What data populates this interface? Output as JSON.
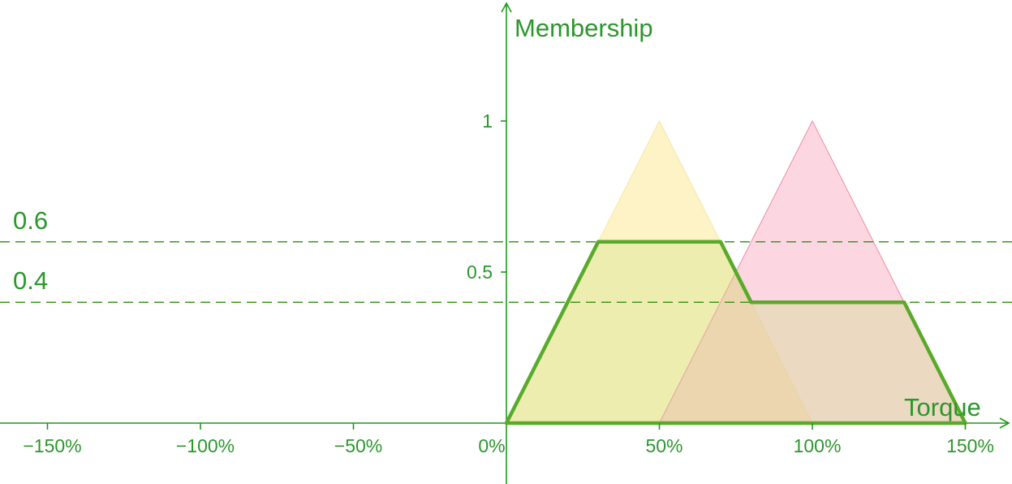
{
  "colors": {
    "axis": "#1a9a1a",
    "text": "#2c962c",
    "dash": "#3a9a1a",
    "outline": "#5aaa2a",
    "yellow_fill": "#fcf0b8",
    "pink_fill": "#f9b4c8",
    "pink_edge": "#f08ca8",
    "yellow_edge": "#f5e7a6",
    "aggregate_fill": "#c8e07a"
  },
  "chart_data": {
    "type": "area",
    "xlabel": "Torque",
    "ylabel": "Membership",
    "xlim": [
      -160,
      165
    ],
    "ylim": [
      -0.2,
      1.4
    ],
    "x_ticks": [
      {
        "value": -150,
        "label": "−150%"
      },
      {
        "value": -100,
        "label": "−100%"
      },
      {
        "value": -50,
        "label": "−50%"
      },
      {
        "value": 0,
        "label": "0%"
      },
      {
        "value": 50,
        "label": "50%"
      },
      {
        "value": 100,
        "label": "100%"
      },
      {
        "value": 150,
        "label": "150%"
      }
    ],
    "y_ticks": [
      {
        "value": 0.5,
        "label": "0.5"
      },
      {
        "value": 1,
        "label": "1"
      }
    ],
    "membership_functions": [
      {
        "shape": "triangle",
        "points": [
          [
            0,
            0
          ],
          [
            50,
            1
          ],
          [
            100,
            0
          ]
        ],
        "color": "yellow"
      },
      {
        "shape": "triangle",
        "points": [
          [
            50,
            0
          ],
          [
            100,
            1
          ],
          [
            150,
            0
          ]
        ],
        "color": "pink"
      }
    ],
    "alpha_cuts": [
      {
        "level": 0.6,
        "label": "0.6"
      },
      {
        "level": 0.4,
        "label": "0.4"
      }
    ],
    "aggregate_outline": [
      [
        0,
        0
      ],
      [
        30,
        0.6
      ],
      [
        70,
        0.6
      ],
      [
        80,
        0.4
      ],
      [
        130,
        0.4
      ],
      [
        150,
        0
      ],
      [
        0,
        0
      ]
    ]
  }
}
